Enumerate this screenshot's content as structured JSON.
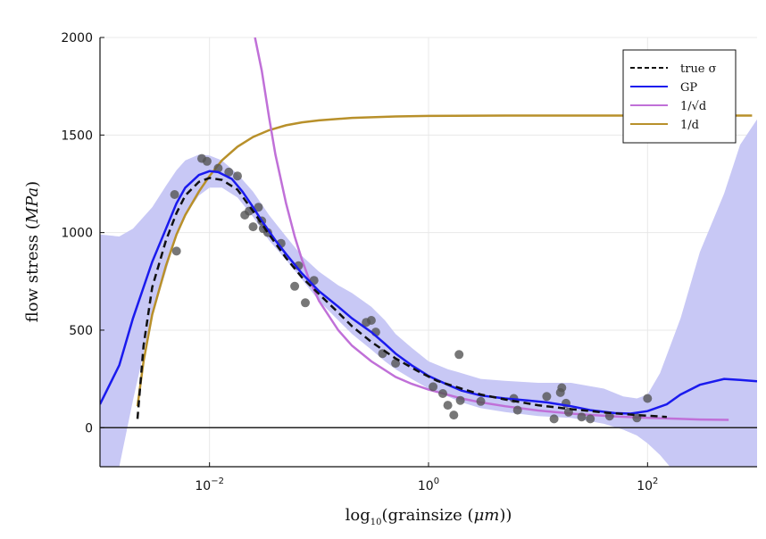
{
  "chart_data": {
    "type": "scatter",
    "xlabel": "log",
    "xlabel_sub": "10",
    "xlabel_rest": "(grainsize (",
    "xlabel_unit": "μm",
    "xlabel_close": "))",
    "ylabel_main": "flow stress (",
    "ylabel_unit": "MPa",
    "ylabel_close": ")",
    "x_scale": "log10",
    "xlim": [
      0.001,
      1000
    ],
    "ylim": [
      -200,
      2000
    ],
    "x_ticks": [
      {
        "base": "10",
        "exp": "−2",
        "value": 0.01
      },
      {
        "base": "10",
        "exp": "0",
        "value": 1
      },
      {
        "base": "10",
        "exp": "2",
        "value": 100
      }
    ],
    "y_ticks": [
      "0",
      "500",
      "1000",
      "1500",
      "2000"
    ],
    "y_tick_values": [
      0,
      500,
      1000,
      1500,
      2000
    ],
    "grid": true,
    "legend_position": "top-right",
    "legend": [
      {
        "label": "true σ",
        "color": "#111111",
        "dash": true
      },
      {
        "label": "GP",
        "color": "#1a1aee",
        "dash": false
      },
      {
        "label": "1/√d",
        "color": "#c070d8",
        "dash": false
      },
      {
        "label": "1/d",
        "color": "#b8902a",
        "dash": false
      }
    ],
    "band_color": "#c8c8f5",
    "point_color": "#555555",
    "points": [
      [
        0.0048,
        1195
      ],
      [
        0.005,
        905
      ],
      [
        0.0085,
        1380
      ],
      [
        0.0095,
        1365
      ],
      [
        0.012,
        1330
      ],
      [
        0.015,
        1310
      ],
      [
        0.018,
        1290
      ],
      [
        0.021,
        1090
      ],
      [
        0.023,
        1110
      ],
      [
        0.025,
        1030
      ],
      [
        0.028,
        1130
      ],
      [
        0.03,
        1060
      ],
      [
        0.031,
        1020
      ],
      [
        0.034,
        1000
      ],
      [
        0.045,
        945
      ],
      [
        0.06,
        725
      ],
      [
        0.065,
        830
      ],
      [
        0.075,
        640
      ],
      [
        0.09,
        755
      ],
      [
        0.27,
        540
      ],
      [
        0.3,
        550
      ],
      [
        0.33,
        490
      ],
      [
        0.38,
        380
      ],
      [
        0.5,
        330
      ],
      [
        1.1,
        210
      ],
      [
        1.35,
        175
      ],
      [
        1.5,
        115
      ],
      [
        1.7,
        65
      ],
      [
        1.9,
        375
      ],
      [
        1.95,
        140
      ],
      [
        3.0,
        135
      ],
      [
        6.0,
        150
      ],
      [
        6.5,
        90
      ],
      [
        12,
        160
      ],
      [
        14,
        45
      ],
      [
        16,
        180
      ],
      [
        16.5,
        205
      ],
      [
        18,
        125
      ],
      [
        19,
        80
      ],
      [
        25,
        55
      ],
      [
        30,
        45
      ],
      [
        45,
        60
      ],
      [
        80,
        50
      ],
      [
        100,
        150
      ]
    ],
    "true_sigma": [
      [
        0.0022,
        45
      ],
      [
        0.0025,
        420
      ],
      [
        0.003,
        720
      ],
      [
        0.004,
        960
      ],
      [
        0.005,
        1100
      ],
      [
        0.006,
        1190
      ],
      [
        0.008,
        1260
      ],
      [
        0.01,
        1280
      ],
      [
        0.013,
        1270
      ],
      [
        0.018,
        1220
      ],
      [
        0.025,
        1110
      ],
      [
        0.035,
        990
      ],
      [
        0.05,
        870
      ],
      [
        0.07,
        770
      ],
      [
        0.1,
        685
      ],
      [
        0.15,
        590
      ],
      [
        0.2,
        520
      ],
      [
        0.3,
        440
      ],
      [
        0.5,
        355
      ],
      [
        0.8,
        290
      ],
      [
        1.2,
        240
      ],
      [
        2,
        200
      ],
      [
        3,
        170
      ],
      [
        5,
        145
      ],
      [
        10,
        115
      ],
      [
        20,
        95
      ],
      [
        40,
        78
      ],
      [
        80,
        65
      ],
      [
        150,
        55
      ]
    ],
    "gp_mean": [
      [
        0.001,
        120
      ],
      [
        0.0015,
        320
      ],
      [
        0.002,
        560
      ],
      [
        0.003,
        850
      ],
      [
        0.004,
        1020
      ],
      [
        0.005,
        1150
      ],
      [
        0.006,
        1230
      ],
      [
        0.008,
        1295
      ],
      [
        0.01,
        1315
      ],
      [
        0.012,
        1310
      ],
      [
        0.016,
        1275
      ],
      [
        0.02,
        1210
      ],
      [
        0.025,
        1130
      ],
      [
        0.03,
        1060
      ],
      [
        0.04,
        960
      ],
      [
        0.05,
        890
      ],
      [
        0.07,
        790
      ],
      [
        0.1,
        700
      ],
      [
        0.15,
        620
      ],
      [
        0.2,
        560
      ],
      [
        0.3,
        490
      ],
      [
        0.4,
        430
      ],
      [
        0.5,
        380
      ],
      [
        0.7,
        320
      ],
      [
        1,
        265
      ],
      [
        1.5,
        220
      ],
      [
        2,
        190
      ],
      [
        3,
        165
      ],
      [
        5,
        150
      ],
      [
        8,
        140
      ],
      [
        12,
        130
      ],
      [
        20,
        110
      ],
      [
        30,
        90
      ],
      [
        50,
        75
      ],
      [
        70,
        72
      ],
      [
        100,
        85
      ],
      [
        150,
        120
      ],
      [
        200,
        170
      ],
      [
        300,
        220
      ],
      [
        500,
        250
      ],
      [
        700,
        245
      ],
      [
        1000,
        238
      ]
    ],
    "gp_upper": [
      [
        0.001,
        990
      ],
      [
        0.0015,
        980
      ],
      [
        0.002,
        1020
      ],
      [
        0.003,
        1130
      ],
      [
        0.004,
        1240
      ],
      [
        0.005,
        1320
      ],
      [
        0.006,
        1370
      ],
      [
        0.008,
        1400
      ],
      [
        0.01,
        1395
      ],
      [
        0.013,
        1370
      ],
      [
        0.018,
        1300
      ],
      [
        0.025,
        1210
      ],
      [
        0.035,
        1090
      ],
      [
        0.05,
        980
      ],
      [
        0.07,
        880
      ],
      [
        0.1,
        800
      ],
      [
        0.15,
        730
      ],
      [
        0.2,
        690
      ],
      [
        0.3,
        620
      ],
      [
        0.4,
        550
      ],
      [
        0.5,
        480
      ],
      [
        0.7,
        410
      ],
      [
        1,
        340
      ],
      [
        1.5,
        300
      ],
      [
        2,
        280
      ],
      [
        3,
        250
      ],
      [
        5,
        240
      ],
      [
        10,
        230
      ],
      [
        20,
        230
      ],
      [
        40,
        200
      ],
      [
        60,
        160
      ],
      [
        80,
        150
      ],
      [
        100,
        170
      ],
      [
        130,
        280
      ],
      [
        200,
        560
      ],
      [
        300,
        900
      ],
      [
        500,
        1200
      ],
      [
        700,
        1450
      ],
      [
        1000,
        1580
      ]
    ],
    "gp_lower": [
      [
        0.001,
        -200
      ],
      [
        0.0015,
        -200
      ],
      [
        0.002,
        140
      ],
      [
        0.003,
        580
      ],
      [
        0.004,
        800
      ],
      [
        0.005,
        990
      ],
      [
        0.006,
        1090
      ],
      [
        0.008,
        1190
      ],
      [
        0.01,
        1230
      ],
      [
        0.013,
        1230
      ],
      [
        0.018,
        1180
      ],
      [
        0.025,
        1080
      ],
      [
        0.035,
        960
      ],
      [
        0.05,
        860
      ],
      [
        0.07,
        760
      ],
      [
        0.1,
        650
      ],
      [
        0.15,
        550
      ],
      [
        0.2,
        480
      ],
      [
        0.3,
        400
      ],
      [
        0.4,
        340
      ],
      [
        0.5,
        300
      ],
      [
        0.7,
        250
      ],
      [
        1,
        200
      ],
      [
        1.5,
        160
      ],
      [
        2,
        130
      ],
      [
        3,
        100
      ],
      [
        5,
        80
      ],
      [
        10,
        60
      ],
      [
        20,
        50
      ],
      [
        40,
        20
      ],
      [
        60,
        -10
      ],
      [
        80,
        -40
      ],
      [
        100,
        -80
      ],
      [
        130,
        -140
      ],
      [
        160,
        -200
      ],
      [
        1000,
        -200
      ]
    ],
    "inv_sqrt_d": [
      [
        0.026,
        2000
      ],
      [
        0.03,
        1830
      ],
      [
        0.035,
        1590
      ],
      [
        0.04,
        1400
      ],
      [
        0.05,
        1150
      ],
      [
        0.06,
        980
      ],
      [
        0.07,
        860
      ],
      [
        0.08,
        770
      ],
      [
        0.1,
        650
      ],
      [
        0.15,
        500
      ],
      [
        0.2,
        420
      ],
      [
        0.3,
        340
      ],
      [
        0.5,
        260
      ],
      [
        0.7,
        225
      ],
      [
        1,
        195
      ],
      [
        2,
        150
      ],
      [
        3,
        130
      ],
      [
        5,
        110
      ],
      [
        10,
        88
      ],
      [
        20,
        72
      ],
      [
        50,
        58
      ],
      [
        100,
        50
      ],
      [
        200,
        45
      ],
      [
        300,
        42
      ],
      [
        550,
        40
      ]
    ],
    "inv_d": [
      [
        0.0022,
        110
      ],
      [
        0.0025,
        340
      ],
      [
        0.003,
        580
      ],
      [
        0.004,
        830
      ],
      [
        0.005,
        990
      ],
      [
        0.006,
        1090
      ],
      [
        0.008,
        1210
      ],
      [
        0.01,
        1290
      ],
      [
        0.013,
        1370
      ],
      [
        0.018,
        1440
      ],
      [
        0.025,
        1490
      ],
      [
        0.035,
        1525
      ],
      [
        0.05,
        1550
      ],
      [
        0.07,
        1565
      ],
      [
        0.1,
        1575
      ],
      [
        0.2,
        1588
      ],
      [
        0.5,
        1595
      ],
      [
        1,
        1598
      ],
      [
        5,
        1600
      ],
      [
        50,
        1600
      ],
      [
        300,
        1600
      ],
      [
        900,
        1600
      ]
    ]
  }
}
